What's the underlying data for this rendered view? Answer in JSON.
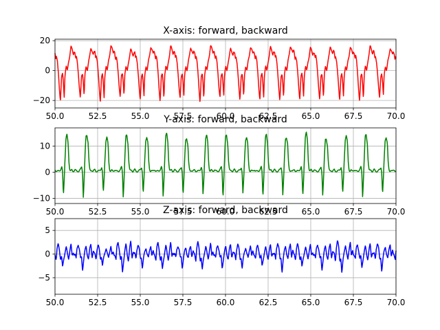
{
  "chart_data": [
    {
      "type": "line",
      "title": "X-axis: forward, backward",
      "xlim": [
        50.0,
        70.0
      ],
      "ylim": [
        -25,
        21
      ],
      "xticks": [
        "50.0",
        "52.5",
        "55.0",
        "57.5",
        "60.0",
        "62.5",
        "65.0",
        "67.5",
        "70.0"
      ],
      "yticks": [
        "20",
        "0",
        "−20"
      ],
      "ytick_values": [
        20,
        0,
        -20
      ],
      "grid": true,
      "period": 1.17,
      "series": [
        {
          "color": "#ff0000",
          "shape_x": [
            0.0,
            0.04,
            0.07,
            0.12,
            0.17,
            0.22,
            0.27,
            0.33,
            0.38,
            0.42,
            0.46,
            0.5,
            0.56,
            0.62,
            0.68,
            0.74,
            0.8,
            0.86,
            0.92,
            0.96
          ],
          "shape_y": [
            12,
            8,
            10,
            6,
            -2,
            -12,
            -20,
            -4,
            -2,
            -8,
            -18,
            -3,
            3,
            0,
            6,
            10,
            16,
            14,
            11,
            13
          ],
          "amp_variation": [
            1.0,
            0.95,
            1.05,
            0.9,
            1.0,
            1.02,
            0.97,
            1.05,
            0.93,
            1.0,
            0.98,
            1.04,
            0.96,
            1.01,
            0.99,
            1.03,
            0.95,
            1.0
          ]
        }
      ]
    },
    {
      "type": "line",
      "title": "Y-axis: forward, backward",
      "xlim": [
        50.0,
        70.0
      ],
      "ylim": [
        -12,
        17
      ],
      "xticks": [
        "50.0",
        "52.5",
        "55.0",
        "57.5",
        "60.0",
        "62.5",
        "65.0",
        "67.5",
        "70.0"
      ],
      "yticks": [
        "10",
        "0",
        "−10"
      ],
      "ytick_values": [
        10,
        0,
        -10
      ],
      "grid": true,
      "period": 1.17,
      "series": [
        {
          "color": "#008000",
          "shape_x": [
            0.0,
            0.05,
            0.12,
            0.2,
            0.28,
            0.34,
            0.38,
            0.42,
            0.46,
            0.5,
            0.55,
            0.6,
            0.66,
            0.7,
            0.74,
            0.78,
            0.84,
            0.9,
            0.95
          ],
          "shape_y": [
            1,
            0.5,
            0.3,
            0.5,
            1,
            2,
            0,
            -9,
            -3,
            5,
            13,
            14,
            11,
            4,
            1,
            0.5,
            0.8,
            0.3,
            0.6
          ],
          "amp_variation": [
            1.0,
            1.05,
            0.95,
            1.02,
            0.98,
            1.04,
            0.96,
            1.0,
            1.03,
            0.97,
            1.01,
            0.99,
            1.06,
            0.94,
            1.0,
            1.02,
            0.98,
            1.0
          ]
        }
      ]
    },
    {
      "type": "line",
      "title": "Z-axis: forward, backward",
      "xlim": [
        50.0,
        70.0
      ],
      "ylim": [
        -8.5,
        7.5
      ],
      "xticks": [
        "50.0",
        "52.5",
        "55.0",
        "57.5",
        "60.0",
        "62.5",
        "65.0",
        "67.5",
        "70.0"
      ],
      "yticks": [
        "5",
        "0",
        "−5"
      ],
      "ytick_values": [
        5,
        0,
        -5
      ],
      "grid": true,
      "period": 1.17,
      "series": [
        {
          "color": "#0000ff",
          "shape_x": [
            0.0,
            0.06,
            0.1,
            0.16,
            0.22,
            0.28,
            0.33,
            0.38,
            0.44,
            0.5,
            0.56,
            0.62,
            0.68,
            0.74,
            0.8,
            0.86,
            0.92,
            0.96
          ],
          "shape_y": [
            0,
            -1,
            1,
            2,
            1,
            -1,
            -0.5,
            -3,
            -1,
            0.5,
            1.5,
            0,
            -1,
            0.8,
            2,
            -0.5,
            0.5,
            0
          ],
          "amp_variation": [
            1.0,
            1.1,
            0.9,
            1.3,
            1.0,
            1.15,
            0.95,
            1.2,
            1.0,
            1.05,
            0.9,
            1.25,
            1.0,
            1.1,
            1.4,
            1.0,
            1.2,
            0.95
          ]
        }
      ]
    }
  ]
}
